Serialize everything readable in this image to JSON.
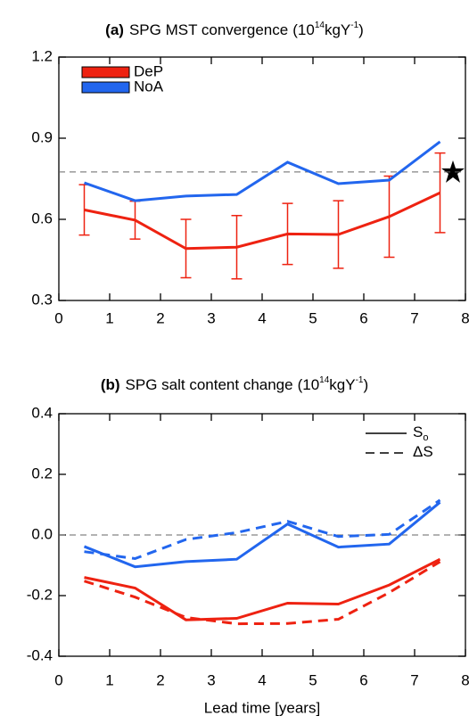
{
  "chart_data": [
    {
      "type": "line",
      "label": "(a)",
      "title": "SPG MST convergence",
      "units": [
        "(10",
        "14",
        "kgY",
        "-1",
        ")"
      ],
      "x": [
        0.5,
        1.5,
        2.5,
        3.5,
        4.5,
        5.5,
        6.5,
        7.5
      ],
      "series": [
        {
          "name": "DeP",
          "color": "#ee2211",
          "values": [
            0.635,
            0.597,
            0.492,
            0.497,
            0.546,
            0.544,
            0.61,
            0.698
          ],
          "errors": [
            0.093,
            0.07,
            0.108,
            0.117,
            0.113,
            0.125,
            0.15,
            0.147
          ]
        },
        {
          "name": "NoA",
          "color": "#2266ee",
          "values": [
            0.735,
            0.669,
            0.686,
            0.692,
            0.811,
            0.732,
            0.745,
            0.887
          ]
        }
      ],
      "hline": 0.775,
      "xlim": [
        0,
        8
      ],
      "xticks": [
        0,
        1,
        2,
        3,
        4,
        5,
        6,
        7,
        8
      ],
      "ylim": [
        0.3,
        1.2
      ],
      "yticks": [
        0.3,
        0.6,
        0.9,
        1.2
      ],
      "legend": "upper left"
    },
    {
      "type": "line",
      "label": "(b)",
      "title": "SPG salt content change",
      "units": [
        "(10",
        "14",
        "kgY",
        "-1",
        ")"
      ],
      "x": [
        0.5,
        1.5,
        2.5,
        3.5,
        4.5,
        5.5,
        6.5,
        7.5
      ],
      "series": [
        {
          "color": "#ee2211",
          "dash": "solid",
          "values": [
            -0.14,
            -0.175,
            -0.28,
            -0.275,
            -0.225,
            -0.228,
            -0.165,
            -0.08
          ]
        },
        {
          "color": "#ee2211",
          "dash": "dashed",
          "values": [
            -0.152,
            -0.205,
            -0.272,
            -0.293,
            -0.292,
            -0.278,
            -0.19,
            -0.088
          ]
        },
        {
          "color": "#2266ee",
          "dash": "solid",
          "values": [
            -0.038,
            -0.105,
            -0.088,
            -0.08,
            0.036,
            -0.04,
            -0.03,
            0.108
          ]
        },
        {
          "color": "#2266ee",
          "dash": "dashed",
          "values": [
            -0.055,
            -0.078,
            -0.015,
            0.008,
            0.045,
            -0.005,
            0.002,
            0.115
          ]
        }
      ],
      "legend_entries": [
        {
          "label": "S",
          "subscript": "o",
          "dash": "solid"
        },
        {
          "label": "ΔS",
          "dash": "dashed"
        }
      ],
      "hline": 0,
      "xlim": [
        0,
        8
      ],
      "xticks": [
        0,
        1,
        2,
        3,
        4,
        5,
        6,
        7,
        8
      ],
      "ylim": [
        -0.4,
        0.4
      ],
      "yticks": [
        -0.4,
        -0.2,
        {
          "value": 0,
          "label": "0.0"
        },
        0.2,
        0.4
      ],
      "xlabel": "Lead time [years]",
      "legend": "upper right"
    }
  ]
}
